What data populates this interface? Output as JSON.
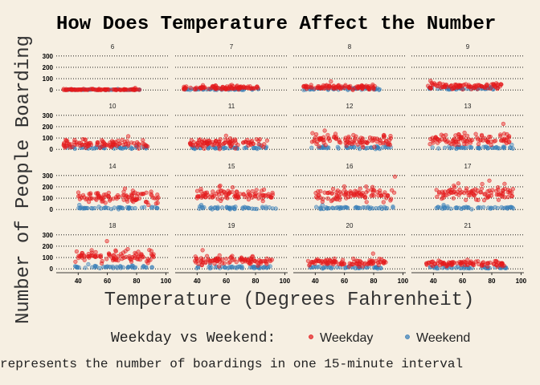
{
  "chart_data": {
    "type": "scatter",
    "title": "How Does Temperature Affect the Number",
    "xlabel": "Temperature (Degrees Fahrenheit)",
    "ylabel": "Number of People Boarding",
    "caption": "represents the number of boardings in one 15-minute interval",
    "legend": {
      "title": "Weekday vs Weekend:",
      "position": "bottom",
      "entries": [
        "Weekday",
        "Weekend"
      ]
    },
    "xlim": [
      25,
      102
    ],
    "ylim": [
      -20,
      320
    ],
    "x_ticks": [
      40,
      60,
      80,
      100
    ],
    "y_ticks": [
      0,
      100,
      200,
      300
    ],
    "grid": "horizontal dotted",
    "colors": {
      "Weekday": "#e41a1c",
      "Weekend": "#377eb8",
      "background": "#f6efe2"
    },
    "panels": [
      {
        "label": "6",
        "x_range": [
          30,
          82
        ],
        "weekday": {
          "mean": 3,
          "spread": 5,
          "max": 18
        },
        "weekend": {
          "mean": 2,
          "spread": 3,
          "max": 8
        }
      },
      {
        "label": "7",
        "x_range": [
          30,
          82
        ],
        "weekday": {
          "mean": 20,
          "spread": 15,
          "max": 45
        },
        "weekend": {
          "mean": 5,
          "spread": 5,
          "max": 15
        }
      },
      {
        "label": "8",
        "x_range": [
          32,
          85
        ],
        "weekday": {
          "mean": 25,
          "spread": 18,
          "max": 75
        },
        "weekend": {
          "mean": 10,
          "spread": 8,
          "max": 25
        }
      },
      {
        "label": "9",
        "x_range": [
          35,
          87
        ],
        "weekday": {
          "mean": 35,
          "spread": 20,
          "max": 80
        },
        "weekend": {
          "mean": 12,
          "spread": 8,
          "max": 30
        }
      },
      {
        "label": "10",
        "x_range": [
          30,
          88
        ],
        "weekday": {
          "mean": 50,
          "spread": 30,
          "max": 115
        },
        "weekend": {
          "mean": 15,
          "spread": 10,
          "max": 35
        }
      },
      {
        "label": "11",
        "x_range": [
          35,
          88
        ],
        "weekday": {
          "mean": 55,
          "spread": 35,
          "max": 120
        },
        "weekend": {
          "mean": 15,
          "spread": 10,
          "max": 40
        }
      },
      {
        "label": "12",
        "x_range": [
          37,
          92
        ],
        "weekday": {
          "mean": 80,
          "spread": 45,
          "max": 165
        },
        "weekend": {
          "mean": 15,
          "spread": 10,
          "max": 40
        }
      },
      {
        "label": "13",
        "x_range": [
          37,
          95
        ],
        "weekday": {
          "mean": 85,
          "spread": 45,
          "max": 225
        },
        "weekend": {
          "mean": 15,
          "spread": 10,
          "max": 40
        }
      },
      {
        "label": "14",
        "x_range": [
          40,
          95
        ],
        "weekday": {
          "mean": 110,
          "spread": 45,
          "max": 185
        },
        "weekend": {
          "mean": 15,
          "spread": 10,
          "max": 40
        }
      },
      {
        "label": "15",
        "x_range": [
          40,
          95
        ],
        "weekday": {
          "mean": 130,
          "spread": 45,
          "max": 210
        },
        "weekend": {
          "mean": 15,
          "spread": 10,
          "max": 40
        }
      },
      {
        "label": "16",
        "x_range": [
          40,
          95
        ],
        "weekday": {
          "mean": 130,
          "spread": 50,
          "max": 290
        },
        "weekend": {
          "mean": 15,
          "spread": 10,
          "max": 40
        }
      },
      {
        "label": "17",
        "x_range": [
          40,
          95
        ],
        "weekday": {
          "mean": 150,
          "spread": 55,
          "max": 255
        },
        "weekend": {
          "mean": 15,
          "spread": 10,
          "max": 40
        }
      },
      {
        "label": "18",
        "x_range": [
          38,
          92
        ],
        "weekday": {
          "mean": 110,
          "spread": 45,
          "max": 245
        },
        "weekend": {
          "mean": 15,
          "spread": 10,
          "max": 40
        }
      },
      {
        "label": "19",
        "x_range": [
          38,
          92
        ],
        "weekday": {
          "mean": 75,
          "spread": 35,
          "max": 165
        },
        "weekend": {
          "mean": 12,
          "spread": 8,
          "max": 35
        }
      },
      {
        "label": "20",
        "x_range": [
          35,
          90
        ],
        "weekday": {
          "mean": 55,
          "spread": 25,
          "max": 135
        },
        "weekend": {
          "mean": 12,
          "spread": 8,
          "max": 35
        }
      },
      {
        "label": "21",
        "x_range": [
          35,
          90
        ],
        "weekday": {
          "mean": 45,
          "spread": 20,
          "max": 80
        },
        "weekend": {
          "mean": 12,
          "spread": 8,
          "max": 30
        }
      }
    ]
  }
}
